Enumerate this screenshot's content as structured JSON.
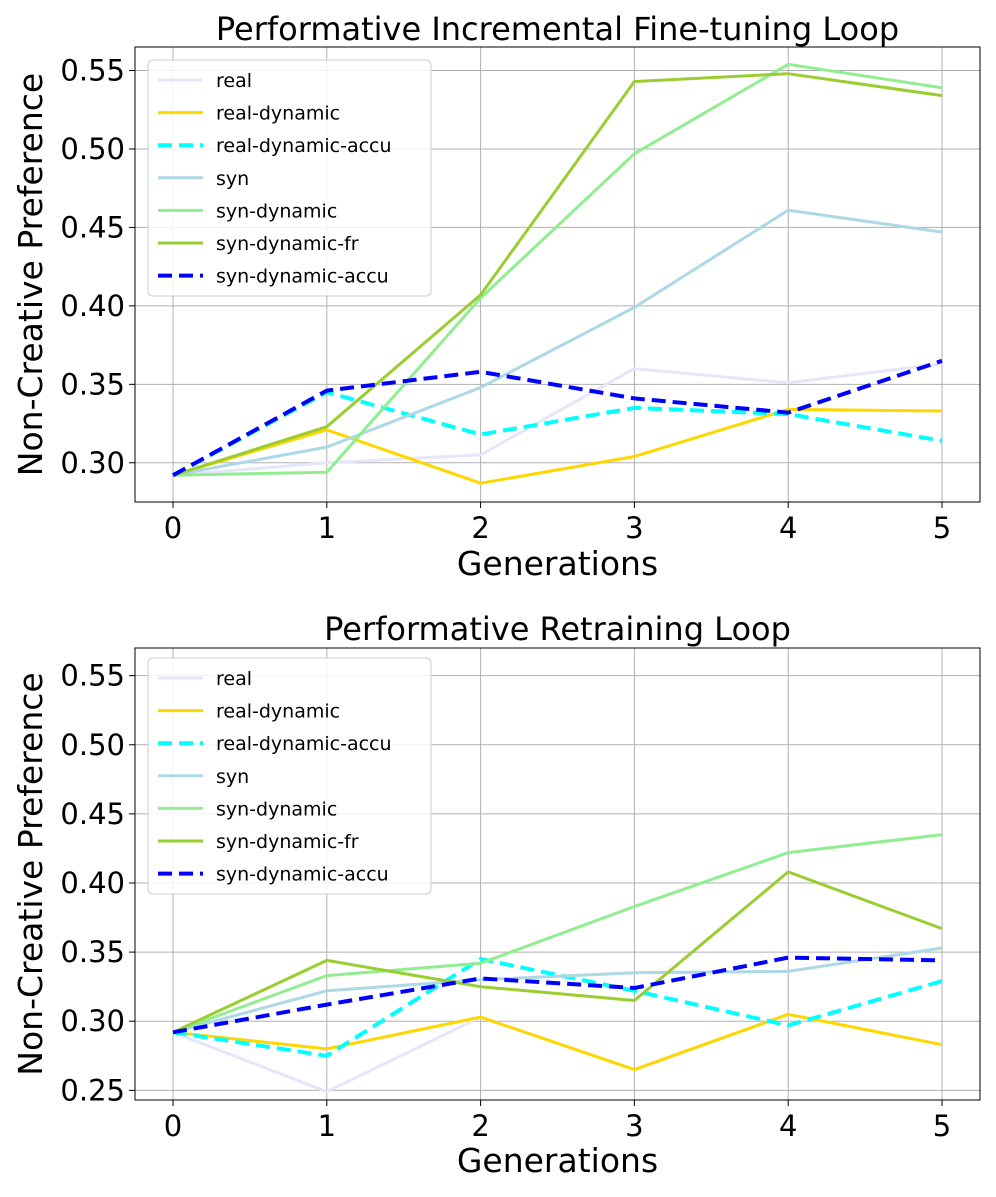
{
  "chart_data": [
    {
      "type": "line",
      "title": "Performative Incremental Fine-tuning Loop",
      "xlabel": "Generations",
      "ylabel": "Non-Creative Preference",
      "x": [
        0,
        1,
        2,
        3,
        4,
        5
      ],
      "xticks": [
        "0",
        "1",
        "2",
        "3",
        "4",
        "5"
      ],
      "ylim": [
        0.275,
        0.565
      ],
      "yticks": [
        "0.30",
        "0.35",
        "0.40",
        "0.45",
        "0.50",
        "0.55"
      ],
      "grid": true,
      "legend": "upper-left",
      "series": [
        {
          "name": "real",
          "color": "#e6e6fa",
          "dashed": false,
          "width": 3,
          "values": [
            0.292,
            0.3,
            0.305,
            0.36,
            0.351,
            0.363
          ]
        },
        {
          "name": "real-dynamic",
          "color": "#ffd700",
          "dashed": false,
          "width": 3,
          "values": [
            0.292,
            0.321,
            0.287,
            0.304,
            0.334,
            0.333
          ]
        },
        {
          "name": "real-dynamic-accu",
          "color": "#00ffff",
          "dashed": true,
          "width": 4,
          "values": [
            0.292,
            0.345,
            0.318,
            0.335,
            0.331,
            0.314
          ]
        },
        {
          "name": "syn",
          "color": "#add8e6",
          "dashed": false,
          "width": 3,
          "values": [
            0.292,
            0.31,
            0.348,
            0.399,
            0.461,
            0.447
          ]
        },
        {
          "name": "syn-dynamic",
          "color": "#90ee90",
          "dashed": false,
          "width": 3,
          "values": [
            0.292,
            0.294,
            0.405,
            0.497,
            0.554,
            0.539
          ]
        },
        {
          "name": "syn-dynamic-fr",
          "color": "#9acd32",
          "dashed": false,
          "width": 3,
          "values": [
            0.292,
            0.323,
            0.407,
            0.543,
            0.548,
            0.534
          ]
        },
        {
          "name": "syn-dynamic-accu",
          "color": "#0000ff",
          "dashed": true,
          "width": 4,
          "values": [
            0.292,
            0.346,
            0.358,
            0.341,
            0.332,
            0.365
          ]
        }
      ]
    },
    {
      "type": "line",
      "title": "Performative Retraining Loop",
      "xlabel": "Generations",
      "ylabel": "Non-Creative Preference",
      "x": [
        0,
        1,
        2,
        3,
        4,
        5
      ],
      "xticks": [
        "0",
        "1",
        "2",
        "3",
        "4",
        "5"
      ],
      "ylim": [
        0.243,
        0.57
      ],
      "yticks": [
        "0.25",
        "0.30",
        "0.35",
        "0.40",
        "0.45",
        "0.50",
        "0.55"
      ],
      "grid": true,
      "legend": "upper-left",
      "series": [
        {
          "name": "real",
          "color": "#e6e6fa",
          "dashed": false,
          "width": 3,
          "values": [
            0.292,
            0.249,
            0.303,
            0.265,
            0.305,
            0.283
          ]
        },
        {
          "name": "real-dynamic",
          "color": "#ffd700",
          "dashed": false,
          "width": 3,
          "values": [
            0.292,
            0.28,
            0.303,
            0.265,
            0.305,
            0.283
          ]
        },
        {
          "name": "real-dynamic-accu",
          "color": "#00ffff",
          "dashed": true,
          "width": 4,
          "values": [
            0.292,
            0.275,
            0.345,
            0.322,
            0.297,
            0.329
          ]
        },
        {
          "name": "syn",
          "color": "#add8e6",
          "dashed": false,
          "width": 3,
          "values": [
            0.292,
            0.322,
            0.33,
            0.335,
            0.336,
            0.353
          ]
        },
        {
          "name": "syn-dynamic",
          "color": "#90ee90",
          "dashed": false,
          "width": 3,
          "values": [
            0.292,
            0.333,
            0.342,
            0.383,
            0.422,
            0.435
          ]
        },
        {
          "name": "syn-dynamic-fr",
          "color": "#9acd32",
          "dashed": false,
          "width": 3,
          "values": [
            0.292,
            0.344,
            0.325,
            0.315,
            0.408,
            0.367
          ]
        },
        {
          "name": "syn-dynamic-accu",
          "color": "#0000ff",
          "dashed": true,
          "width": 4,
          "values": [
            0.292,
            0.312,
            0.331,
            0.324,
            0.346,
            0.344
          ]
        }
      ]
    }
  ]
}
